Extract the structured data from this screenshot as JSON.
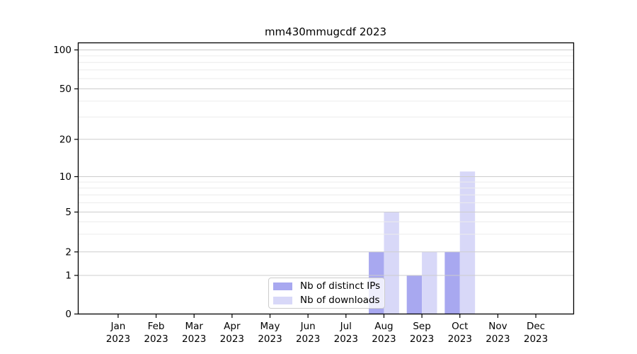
{
  "chart_data": {
    "type": "bar",
    "title": "mm430mmugcdf 2023",
    "x_categories": [
      "Jan",
      "Feb",
      "Mar",
      "Apr",
      "May",
      "Jun",
      "Jul",
      "Aug",
      "Sep",
      "Oct",
      "Nov",
      "Dec"
    ],
    "x_year": "2023",
    "series": [
      {
        "name": "Nb of distinct IPs",
        "color": "#a8a8f0",
        "values": [
          0,
          0,
          0,
          0,
          0,
          0,
          0,
          2,
          1,
          2,
          0,
          0
        ]
      },
      {
        "name": "Nb of downloads",
        "color": "#d8d8f8",
        "values": [
          0,
          0,
          0,
          0,
          0,
          0,
          0,
          5,
          2,
          11,
          0,
          0
        ]
      }
    ],
    "y_ticks": [
      0,
      1,
      2,
      5,
      10,
      20,
      50,
      100
    ],
    "y_minor_ticks": [
      3,
      4,
      6,
      7,
      8,
      9,
      30,
      40,
      60,
      70,
      80,
      90
    ],
    "y_scale": "symlog",
    "ylim": [
      0,
      114
    ],
    "grid": true,
    "grid_above_bars": true,
    "legend_position": "lower center",
    "axis_color": "#000000",
    "grid_major_color": "#cdcdcd",
    "grid_minor_color": "#ececec",
    "background_color": "#ffffff"
  }
}
